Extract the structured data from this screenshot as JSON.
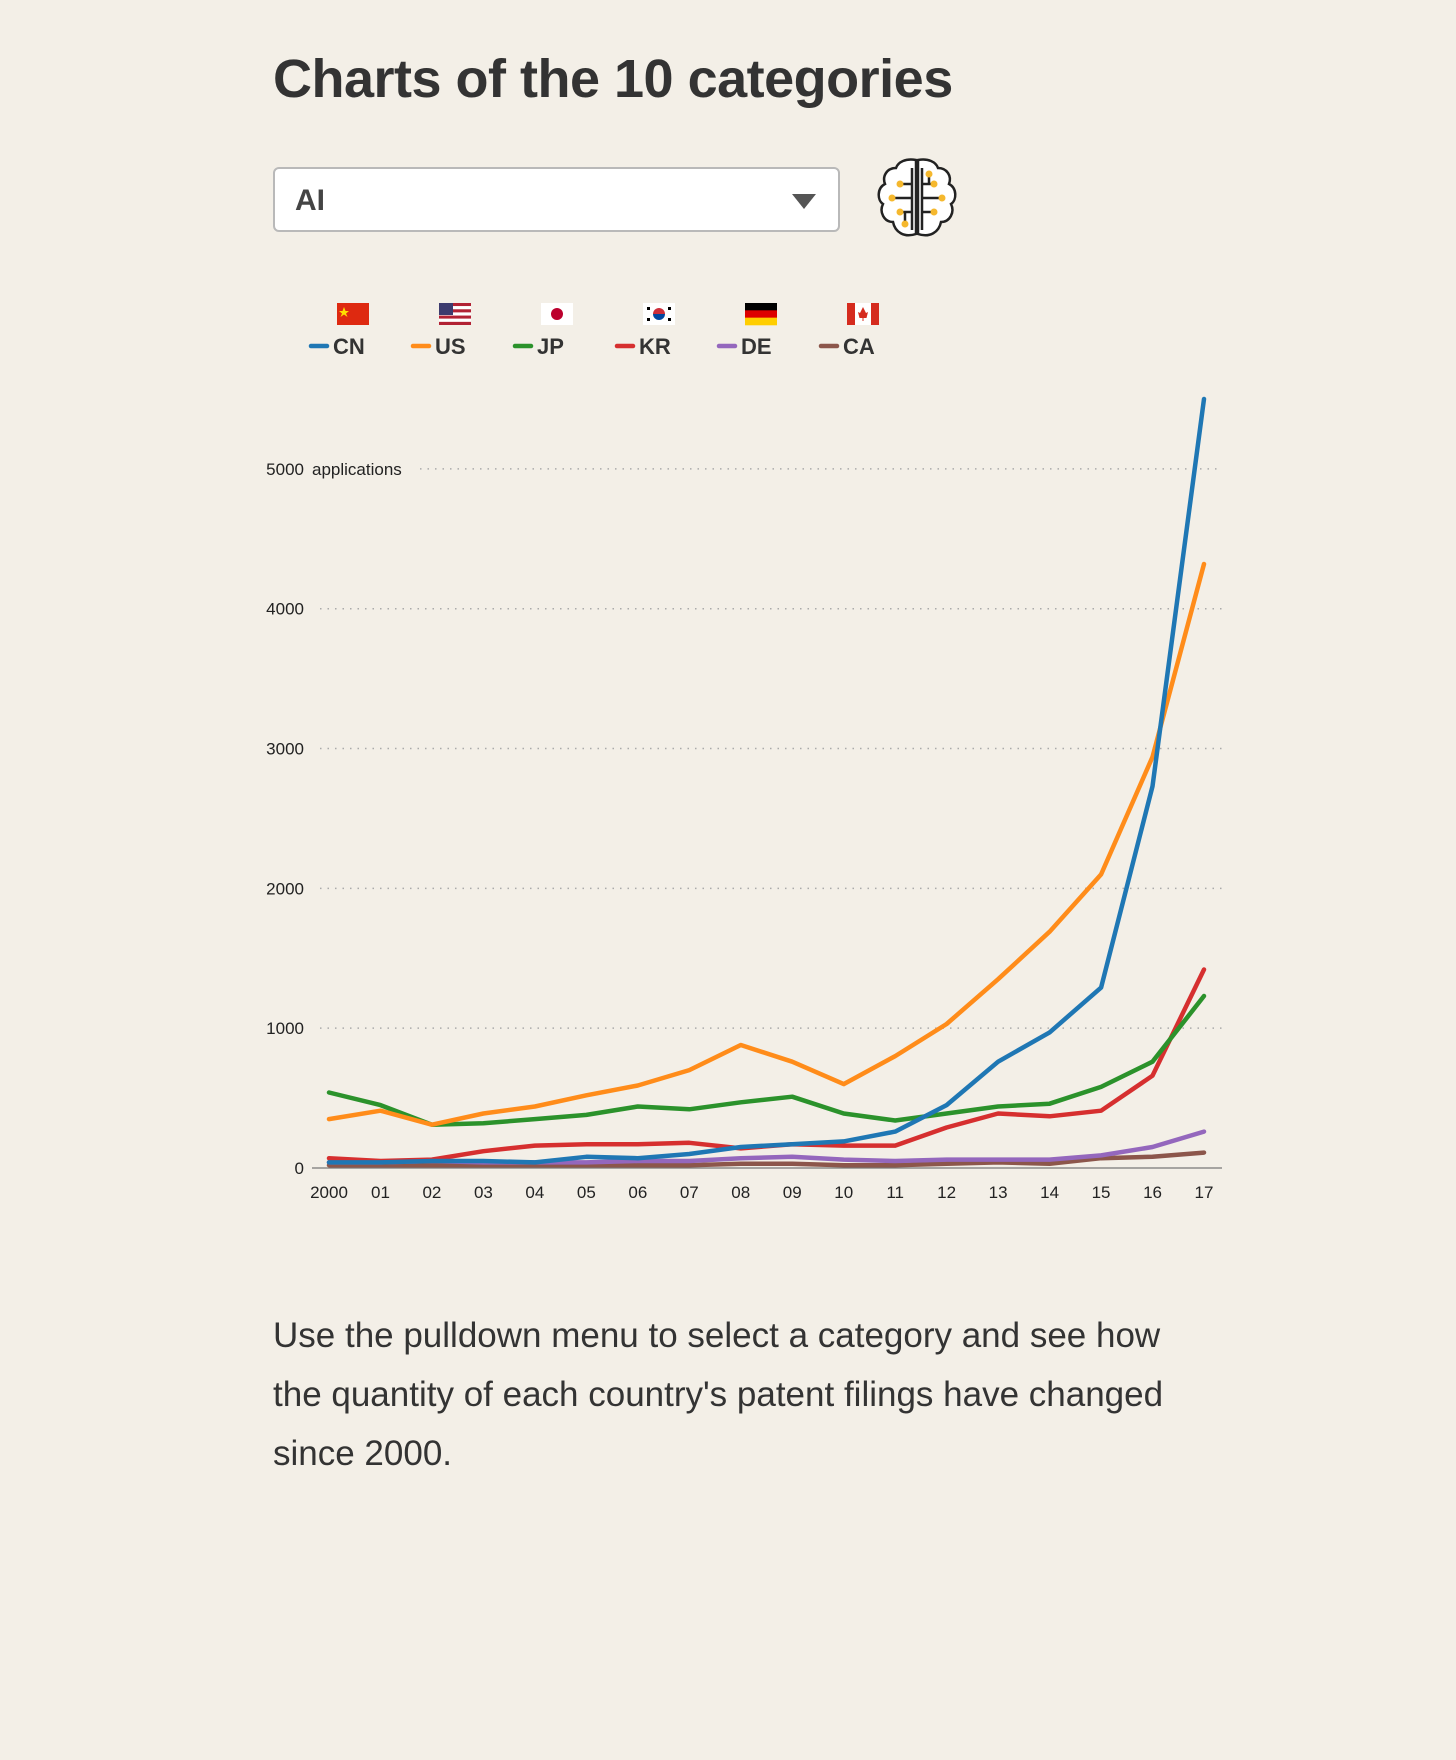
{
  "page": {
    "title": "Charts of the 10 categories",
    "caption": "Use the pulldown menu to select a category and see how the quantity of each country's patent filings have changed since 2000."
  },
  "category_select": {
    "selected": "AI",
    "icon": "brain-circuit-icon"
  },
  "chart_data": {
    "type": "line",
    "x": [
      "2000",
      "01",
      "02",
      "03",
      "04",
      "05",
      "06",
      "07",
      "08",
      "09",
      "10",
      "11",
      "12",
      "13",
      "14",
      "15",
      "16",
      "17"
    ],
    "ylim": [
      0,
      5500
    ],
    "yticks": [
      0,
      1000,
      2000,
      3000,
      4000,
      5000
    ],
    "ylabel": "applications",
    "grid": "dotted-horizontal",
    "legend_placement": "top",
    "series": [
      {
        "name": "CN",
        "flag": "china-flag-icon",
        "color": "#1f77b4",
        "values": [
          40,
          40,
          50,
          50,
          40,
          80,
          70,
          100,
          150,
          170,
          190,
          260,
          450,
          760,
          970,
          1290,
          2730,
          5500
        ]
      },
      {
        "name": "US",
        "flag": "us-flag-icon",
        "color": "#ff8c1a",
        "values": [
          350,
          410,
          310,
          390,
          440,
          520,
          590,
          700,
          880,
          760,
          600,
          800,
          1030,
          1350,
          1690,
          2100,
          2940,
          4320
        ]
      },
      {
        "name": "JP",
        "flag": "japan-flag-icon",
        "color": "#2b922b",
        "values": [
          540,
          450,
          310,
          320,
          350,
          380,
          440,
          420,
          470,
          510,
          390,
          340,
          390,
          440,
          460,
          580,
          760,
          1230
        ]
      },
      {
        "name": "KR",
        "flag": "korea-flag-icon",
        "color": "#d62f2f",
        "values": [
          70,
          50,
          60,
          120,
          160,
          170,
          170,
          180,
          140,
          170,
          160,
          160,
          290,
          390,
          370,
          410,
          660,
          1420
        ]
      },
      {
        "name": "DE",
        "flag": "germany-flag-icon",
        "color": "#9467bd",
        "values": [
          40,
          40,
          50,
          40,
          40,
          40,
          50,
          50,
          70,
          80,
          60,
          50,
          60,
          60,
          60,
          90,
          150,
          260
        ]
      },
      {
        "name": "CA",
        "flag": "canada-flag-icon",
        "color": "#8c564b",
        "values": [
          20,
          20,
          20,
          20,
          20,
          20,
          20,
          20,
          30,
          30,
          20,
          20,
          30,
          40,
          30,
          70,
          80,
          110
        ]
      }
    ]
  }
}
